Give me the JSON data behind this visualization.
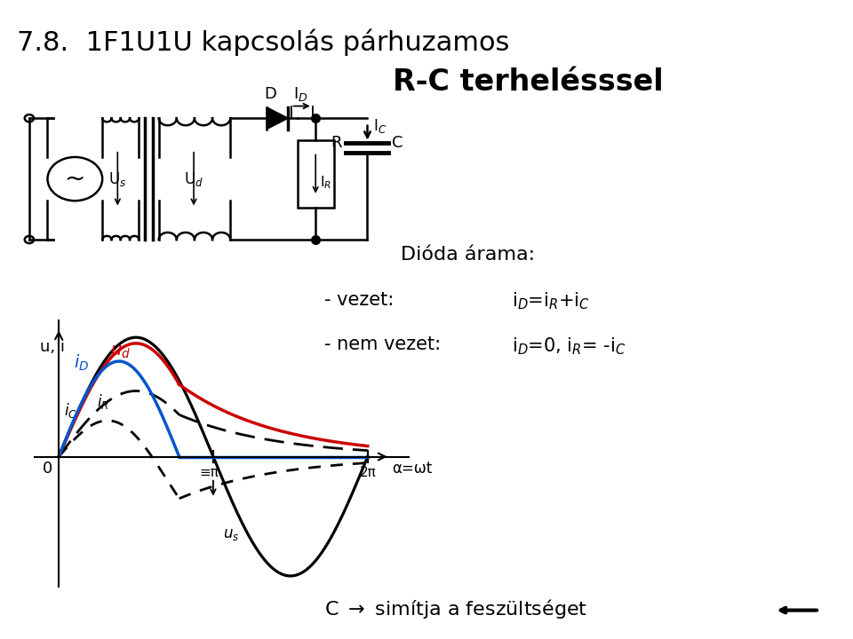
{
  "title_line1": "7.8.  1F1U1U kapcsolás párhuzamos",
  "title_line2": "R-C terhelésssel",
  "bg_color": "#ffffff",
  "dioda_arama": "Dióda árama:",
  "vezet_label": "- vezet:",
  "vezet_eq": "i$_D$=i$_R$+i$_C$",
  "nem_vezet_label": "- nem vezet:",
  "nem_vezet_eq": "i$_D$=0, i$_R$= -i$_C$",
  "c_text": "C → simítja a feszültséget",
  "ylabel": "u, i",
  "xlabel": "α=ωt",
  "iD_color": "#0055cc",
  "ud_color": "#cc0000",
  "us_color": "#000000",
  "wave_top_color": "#8B7340",
  "wave_bot_color": "#1a3a7a",
  "nav_color": "#c8a000"
}
